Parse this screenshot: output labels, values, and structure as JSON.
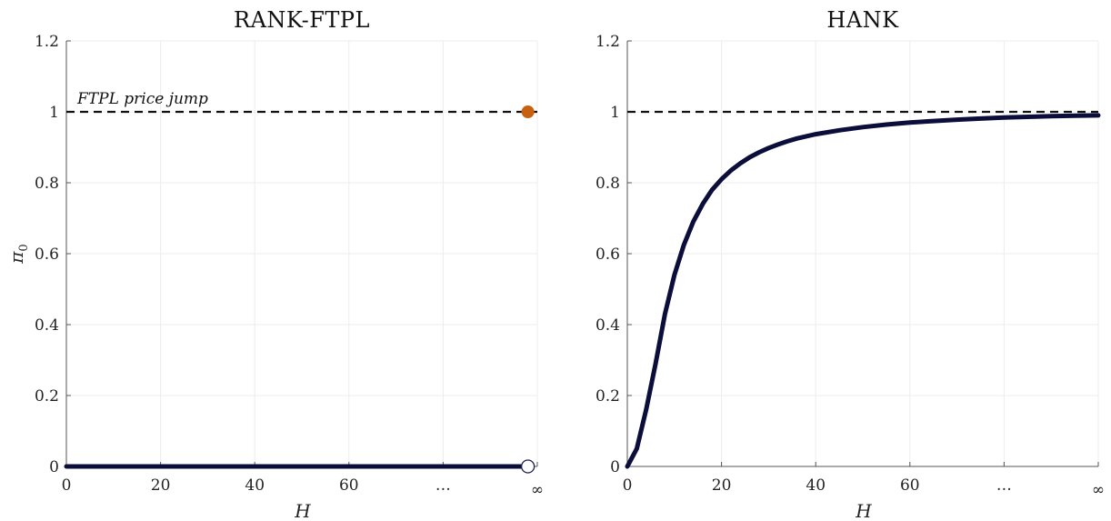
{
  "chart_data": [
    {
      "type": "line",
      "title": "RANK-FTPL",
      "xlabel": "H",
      "ylabel": "π",
      "ylabel_subscript": "0",
      "xlim": [
        0,
        100
      ],
      "ylim": [
        0,
        1.2
      ],
      "x_ticks": [
        0,
        20,
        40,
        60,
        80,
        100
      ],
      "x_tick_labels": [
        "0",
        "20",
        "40",
        "60",
        "…",
        "∞"
      ],
      "y_ticks": [
        0,
        0.2,
        0.4,
        0.6,
        0.8,
        1,
        1.2
      ],
      "y_tick_labels": [
        "0",
        "0.2",
        "0.4",
        "0.6",
        "0.8",
        "1",
        "1.2"
      ],
      "grid": true,
      "reference_line": {
        "y": 1,
        "style": "dashed",
        "color": "#111111"
      },
      "annotation": "FTPL price jump",
      "series": [
        {
          "x": [
            0,
            98
          ],
          "y": [
            0,
            0
          ],
          "color": "#0b0d3a"
        }
      ],
      "markers": [
        {
          "x": 98,
          "y": 0,
          "style": "open",
          "color": "#1c2050"
        },
        {
          "x": 98,
          "y": 1,
          "style": "filled",
          "color": "#c8610f"
        }
      ]
    },
    {
      "type": "line",
      "title": "HANK",
      "xlabel": "H",
      "ylabel": "",
      "xlim": [
        0,
        100
      ],
      "ylim": [
        0,
        1.2
      ],
      "x_ticks": [
        0,
        20,
        40,
        60,
        80,
        100
      ],
      "x_tick_labels": [
        "0",
        "20",
        "40",
        "60",
        "…",
        "∞"
      ],
      "y_ticks": [
        0,
        0.2,
        0.4,
        0.6,
        0.8,
        1,
        1.2
      ],
      "y_tick_labels": [
        "0",
        "0.2",
        "0.4",
        "0.6",
        "0.8",
        "1",
        "1.2"
      ],
      "grid": true,
      "reference_line": {
        "y": 1,
        "style": "dashed",
        "color": "#111111"
      },
      "series": [
        {
          "color": "#0b0d3a",
          "x": [
            0,
            2,
            4,
            6,
            8,
            10,
            12,
            14,
            16,
            18,
            20,
            22,
            24,
            26,
            28,
            30,
            32,
            34,
            36,
            38,
            40,
            45,
            50,
            55,
            60,
            65,
            70,
            75,
            80,
            85,
            90,
            95,
            100
          ],
          "y": [
            0,
            0.05,
            0.16,
            0.29,
            0.43,
            0.54,
            0.625,
            0.69,
            0.74,
            0.78,
            0.81,
            0.835,
            0.855,
            0.872,
            0.886,
            0.898,
            0.908,
            0.917,
            0.925,
            0.931,
            0.937,
            0.948,
            0.957,
            0.964,
            0.97,
            0.974,
            0.978,
            0.981,
            0.984,
            0.986,
            0.988,
            0.989,
            0.99
          ]
        }
      ]
    }
  ]
}
